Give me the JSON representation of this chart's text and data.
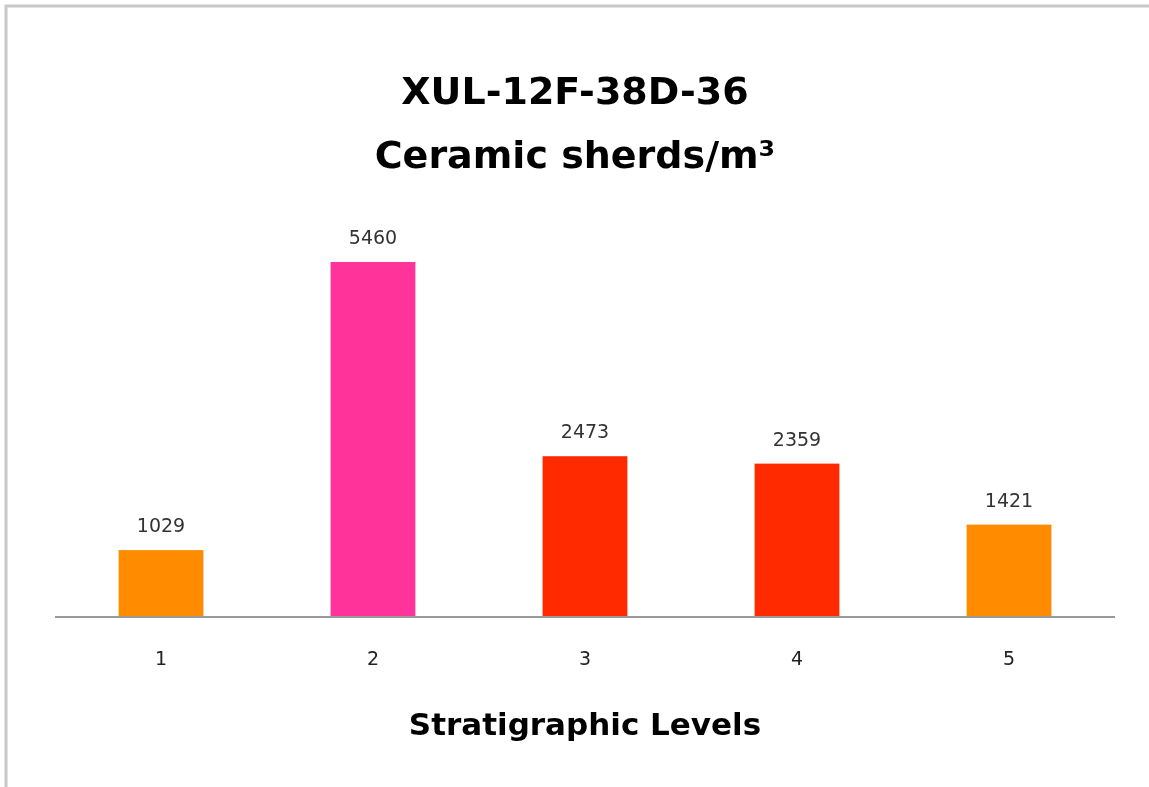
{
  "chart_data": {
    "type": "bar",
    "title": "XUL-12F-38D-36",
    "subtitle": "Ceramic sherds/m³",
    "xlabel": "Stratigraphic Levels",
    "categories": [
      "1",
      "2",
      "3",
      "4",
      "5"
    ],
    "values": [
      1029,
      5460,
      2473,
      2359,
      1421
    ],
    "colors": [
      "#ff8c00",
      "#ff3399",
      "#ff2a00",
      "#ff2a00",
      "#ff8c00"
    ],
    "data_labels": true
  }
}
